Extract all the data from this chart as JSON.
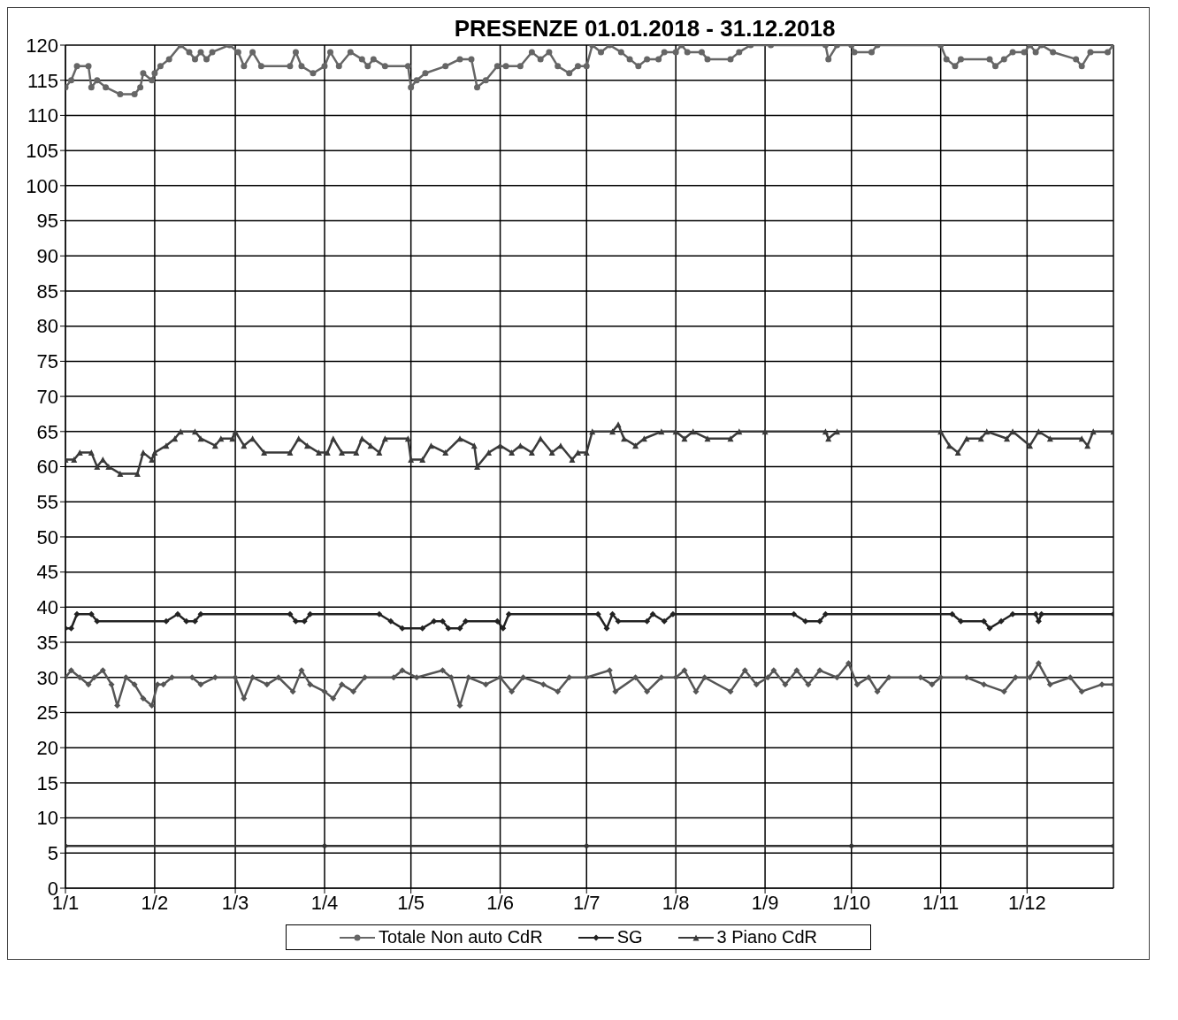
{
  "chart_data": {
    "type": "line",
    "title": "PRESENZE 01.01.2018 - 31.12.2018",
    "xlim": [
      "2018-01-01",
      "2018-12-31"
    ],
    "xticks": [
      {
        "value": "2018-01-01",
        "label": "1/1"
      },
      {
        "value": "2018-02-01",
        "label": "1/2"
      },
      {
        "value": "2018-03-01",
        "label": "1/3"
      },
      {
        "value": "2018-04-01",
        "label": "1/4"
      },
      {
        "value": "2018-05-01",
        "label": "1/5"
      },
      {
        "value": "2018-06-01",
        "label": "1/6"
      },
      {
        "value": "2018-07-01",
        "label": "1/7"
      },
      {
        "value": "2018-08-01",
        "label": "1/8"
      },
      {
        "value": "2018-09-01",
        "label": "1/9"
      },
      {
        "value": "2018-10-01",
        "label": "1/10"
      },
      {
        "value": "2018-11-01",
        "label": "1/11"
      },
      {
        "value": "2018-12-01",
        "label": "1/12"
      }
    ],
    "ylim": [
      0,
      120
    ],
    "yticks": [
      0,
      5,
      10,
      15,
      20,
      25,
      30,
      35,
      40,
      45,
      50,
      55,
      60,
      65,
      70,
      75,
      80,
      85,
      90,
      95,
      100,
      105,
      110,
      115,
      120
    ],
    "grid": true,
    "legend": "bottom",
    "line_style": "solid",
    "series": [
      {
        "name": "Totale Non auto CdR",
        "color": "#666666",
        "marker": "circle",
        "x": [
          "2018-01-01",
          "2018-01-03",
          "2018-01-05",
          "2018-01-09",
          "2018-01-10",
          "2018-01-12",
          "2018-01-15",
          "2018-01-20",
          "2018-01-25",
          "2018-01-27",
          "2018-01-28",
          "2018-01-31",
          "2018-02-01",
          "2018-02-03",
          "2018-02-06",
          "2018-02-10",
          "2018-02-13",
          "2018-02-15",
          "2018-02-17",
          "2018-02-19",
          "2018-02-21",
          "2018-02-27",
          "2018-03-02",
          "2018-03-04",
          "2018-03-07",
          "2018-03-10",
          "2018-03-20",
          "2018-03-22",
          "2018-03-24",
          "2018-03-28",
          "2018-04-01",
          "2018-04-03",
          "2018-04-06",
          "2018-04-10",
          "2018-04-14",
          "2018-04-16",
          "2018-04-18",
          "2018-04-22",
          "2018-04-30",
          "2018-05-01",
          "2018-05-03",
          "2018-05-06",
          "2018-05-13",
          "2018-05-18",
          "2018-05-22",
          "2018-05-24",
          "2018-05-27",
          "2018-05-31",
          "2018-06-03",
          "2018-06-08",
          "2018-06-12",
          "2018-06-15",
          "2018-06-18",
          "2018-06-21",
          "2018-06-25",
          "2018-06-28",
          "2018-07-01",
          "2018-07-03",
          "2018-07-06",
          "2018-07-09",
          "2018-07-13",
          "2018-07-16",
          "2018-07-19",
          "2018-07-22",
          "2018-07-26",
          "2018-07-28",
          "2018-08-01",
          "2018-08-03",
          "2018-08-05",
          "2018-08-10",
          "2018-08-12",
          "2018-08-20",
          "2018-08-23",
          "2018-08-27",
          "2018-09-03",
          "2018-09-22",
          "2018-09-23",
          "2018-09-26",
          "2018-10-01",
          "2018-10-02",
          "2018-10-08",
          "2018-10-10",
          "2018-11-01",
          "2018-11-03",
          "2018-11-06",
          "2018-11-08",
          "2018-11-18",
          "2018-11-20",
          "2018-11-23",
          "2018-11-26",
          "2018-11-30",
          "2018-12-02",
          "2018-12-04",
          "2018-12-06",
          "2018-12-10",
          "2018-12-18",
          "2018-12-20",
          "2018-12-23",
          "2018-12-29",
          "2018-12-31"
        ],
        "values": [
          114,
          115,
          117,
          117,
          114,
          115,
          114,
          113,
          113,
          114,
          116,
          115,
          116,
          117,
          118,
          120,
          119,
          118,
          119,
          118,
          119,
          120,
          119,
          117,
          119,
          117,
          117,
          119,
          117,
          116,
          117,
          119,
          117,
          119,
          118,
          117,
          118,
          117,
          117,
          114,
          115,
          116,
          117,
          118,
          118,
          114,
          115,
          117,
          117,
          117,
          119,
          118,
          119,
          117,
          116,
          117,
          117,
          120,
          119,
          120,
          119,
          118,
          117,
          118,
          118,
          119,
          119,
          120,
          119,
          119,
          118,
          118,
          119,
          120,
          120,
          120,
          118,
          120,
          120,
          119,
          119,
          120,
          120,
          118,
          117,
          118,
          118,
          117,
          118,
          119,
          119,
          120,
          119,
          120,
          119,
          118,
          117,
          119,
          119,
          120
        ]
      },
      {
        "name": "SG",
        "color": "#222222",
        "marker": "diamond",
        "x": [
          "2018-01-01",
          "2018-01-03",
          "2018-01-05",
          "2018-01-10",
          "2018-01-12",
          "2018-02-05",
          "2018-02-09",
          "2018-02-12",
          "2018-02-15",
          "2018-02-17",
          "2018-03-20",
          "2018-03-22",
          "2018-03-25",
          "2018-03-27",
          "2018-04-20",
          "2018-04-24",
          "2018-04-28",
          "2018-05-05",
          "2018-05-09",
          "2018-05-12",
          "2018-05-14",
          "2018-05-18",
          "2018-05-20",
          "2018-05-31",
          "2018-06-02",
          "2018-06-04",
          "2018-07-05",
          "2018-07-08",
          "2018-07-10",
          "2018-07-12",
          "2018-07-22",
          "2018-07-24",
          "2018-07-28",
          "2018-07-31",
          "2018-09-11",
          "2018-09-15",
          "2018-09-20",
          "2018-09-22",
          "2018-11-05",
          "2018-11-08",
          "2018-11-16",
          "2018-11-18",
          "2018-11-22",
          "2018-11-26",
          "2018-12-04",
          "2018-12-05",
          "2018-12-06",
          "2018-12-31"
        ],
        "values": [
          37,
          37,
          39,
          39,
          38,
          38,
          39,
          38,
          38,
          39,
          39,
          38,
          38,
          39,
          39,
          38,
          37,
          37,
          38,
          38,
          37,
          37,
          38,
          38,
          37,
          39,
          39,
          37,
          39,
          38,
          38,
          39,
          38,
          39,
          39,
          38,
          38,
          39,
          39,
          38,
          38,
          37,
          38,
          39,
          39,
          38,
          39,
          39
        ]
      },
      {
        "name": "3 Piano CdR",
        "color": "#3a3a3a",
        "marker": "triangle",
        "x": [
          "2018-01-01",
          "2018-01-04",
          "2018-01-06",
          "2018-01-10",
          "2018-01-12",
          "2018-01-14",
          "2018-01-16",
          "2018-01-20",
          "2018-01-26",
          "2018-01-28",
          "2018-01-31",
          "2018-02-01",
          "2018-02-05",
          "2018-02-08",
          "2018-02-10",
          "2018-02-15",
          "2018-02-17",
          "2018-02-22",
          "2018-02-24",
          "2018-02-28",
          "2018-03-01",
          "2018-03-04",
          "2018-03-07",
          "2018-03-11",
          "2018-03-20",
          "2018-03-23",
          "2018-03-26",
          "2018-03-30",
          "2018-04-02",
          "2018-04-04",
          "2018-04-07",
          "2018-04-12",
          "2018-04-14",
          "2018-04-17",
          "2018-04-20",
          "2018-04-22",
          "2018-04-30",
          "2018-05-01",
          "2018-05-05",
          "2018-05-08",
          "2018-05-13",
          "2018-05-18",
          "2018-05-23",
          "2018-05-24",
          "2018-05-28",
          "2018-06-01",
          "2018-06-05",
          "2018-06-08",
          "2018-06-12",
          "2018-06-15",
          "2018-06-19",
          "2018-06-22",
          "2018-06-26",
          "2018-06-28",
          "2018-07-01",
          "2018-07-03",
          "2018-07-10",
          "2018-07-12",
          "2018-07-14",
          "2018-07-18",
          "2018-07-21",
          "2018-07-27",
          "2018-08-01",
          "2018-08-04",
          "2018-08-07",
          "2018-08-12",
          "2018-08-20",
          "2018-08-23",
          "2018-09-01",
          "2018-09-22",
          "2018-09-23",
          "2018-09-26",
          "2018-11-01",
          "2018-11-04",
          "2018-11-07",
          "2018-11-10",
          "2018-11-15",
          "2018-11-17",
          "2018-11-24",
          "2018-11-26",
          "2018-12-02",
          "2018-12-05",
          "2018-12-09",
          "2018-12-20",
          "2018-12-22",
          "2018-12-24",
          "2018-12-31"
        ],
        "values": [
          61,
          61,
          62,
          62,
          60,
          61,
          60,
          59,
          59,
          62,
          61,
          62,
          63,
          64,
          65,
          65,
          64,
          63,
          64,
          64,
          65,
          63,
          64,
          62,
          62,
          64,
          63,
          62,
          62,
          64,
          62,
          62,
          64,
          63,
          62,
          64,
          64,
          61,
          61,
          63,
          62,
          64,
          63,
          60,
          62,
          63,
          62,
          63,
          62,
          64,
          62,
          63,
          61,
          62,
          62,
          65,
          65,
          66,
          64,
          63,
          64,
          65,
          65,
          64,
          65,
          64,
          64,
          65,
          65,
          65,
          64,
          65,
          65,
          63,
          62,
          64,
          64,
          65,
          64,
          65,
          63,
          65,
          64,
          64,
          63,
          65,
          65
        ]
      },
      {
        "color": "#555555",
        "marker": "diamond",
        "x": [
          "2018-01-01",
          "2018-01-03",
          "2018-01-06",
          "2018-01-09",
          "2018-01-11",
          "2018-01-14",
          "2018-01-17",
          "2018-01-19",
          "2018-01-22",
          "2018-01-25",
          "2018-01-28",
          "2018-01-31",
          "2018-02-02",
          "2018-02-04",
          "2018-02-07",
          "2018-02-14",
          "2018-02-17",
          "2018-02-22",
          "2018-03-01",
          "2018-03-04",
          "2018-03-07",
          "2018-03-12",
          "2018-03-16",
          "2018-03-21",
          "2018-03-24",
          "2018-03-27",
          "2018-04-01",
          "2018-04-04",
          "2018-04-07",
          "2018-04-11",
          "2018-04-15",
          "2018-04-25",
          "2018-04-28",
          "2018-05-03",
          "2018-05-12",
          "2018-05-15",
          "2018-05-18",
          "2018-05-21",
          "2018-05-27",
          "2018-06-01",
          "2018-06-05",
          "2018-06-09",
          "2018-06-16",
          "2018-06-21",
          "2018-06-25",
          "2018-07-01",
          "2018-07-09",
          "2018-07-11",
          "2018-07-18",
          "2018-07-22",
          "2018-07-27",
          "2018-08-01",
          "2018-08-04",
          "2018-08-08",
          "2018-08-11",
          "2018-08-20",
          "2018-08-25",
          "2018-08-29",
          "2018-09-02",
          "2018-09-04",
          "2018-09-08",
          "2018-09-12",
          "2018-09-16",
          "2018-09-20",
          "2018-09-26",
          "2018-09-30",
          "2018-10-03",
          "2018-10-07",
          "2018-10-10",
          "2018-10-14",
          "2018-10-25",
          "2018-10-29",
          "2018-11-01",
          "2018-11-10",
          "2018-11-16",
          "2018-11-23",
          "2018-11-27",
          "2018-12-02",
          "2018-12-05",
          "2018-12-09",
          "2018-12-16",
          "2018-12-20",
          "2018-12-27",
          "2018-12-31"
        ],
        "values": [
          30,
          31,
          30,
          29,
          30,
          31,
          29,
          26,
          30,
          29,
          27,
          26,
          29,
          29,
          30,
          30,
          29,
          30,
          30,
          27,
          30,
          29,
          30,
          28,
          31,
          29,
          28,
          27,
          29,
          28,
          30,
          30,
          31,
          30,
          31,
          30,
          26,
          30,
          29,
          30,
          28,
          30,
          29,
          28,
          30,
          30,
          31,
          28,
          30,
          28,
          30,
          30,
          31,
          28,
          30,
          28,
          31,
          29,
          30,
          31,
          29,
          31,
          29,
          31,
          30,
          32,
          29,
          30,
          28,
          30,
          30,
          29,
          30,
          30,
          29,
          28,
          30,
          30,
          32,
          29,
          30,
          28,
          29,
          29
        ]
      },
      {
        "color": "#333333",
        "marker": "diamond",
        "x": [
          "2018-01-01",
          "2018-04-01",
          "2018-07-01",
          "2018-10-01",
          "2018-12-31"
        ],
        "values": [
          6,
          6,
          6,
          6,
          6
        ]
      }
    ]
  }
}
